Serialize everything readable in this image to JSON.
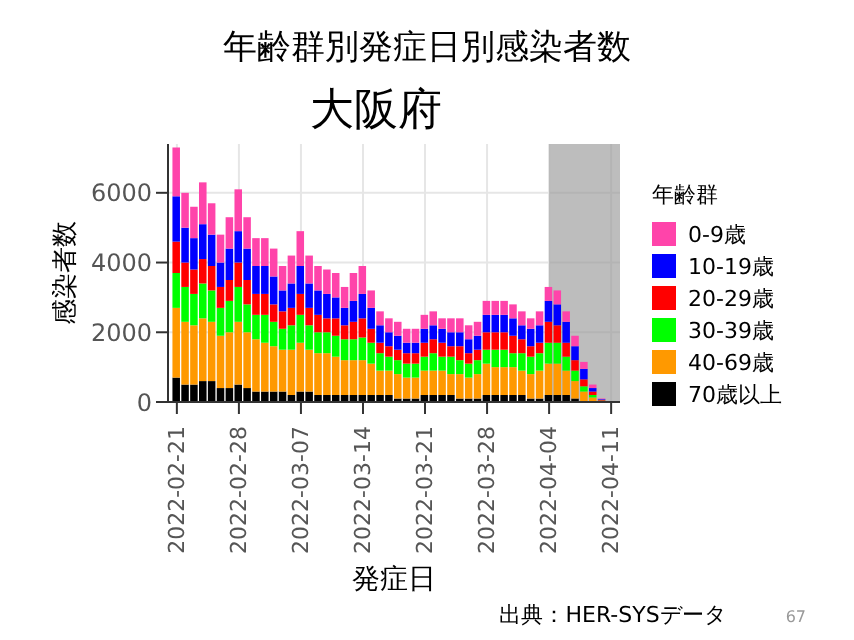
{
  "chart_data": {
    "type": "bar",
    "title": "年齢群別発症日別感染者数",
    "subtitle": "大阪府",
    "xlabel": "発症日",
    "ylabel": "感染者数",
    "legend_title": "年齢群",
    "stacked": true,
    "grid": true,
    "legend": "right",
    "x": [
      "2022-02-21",
      "2022-02-22",
      "2022-02-23",
      "2022-02-24",
      "2022-02-25",
      "2022-02-26",
      "2022-02-27",
      "2022-02-28",
      "2022-03-01",
      "2022-03-02",
      "2022-03-03",
      "2022-03-04",
      "2022-03-05",
      "2022-03-06",
      "2022-03-07",
      "2022-03-08",
      "2022-03-09",
      "2022-03-10",
      "2022-03-11",
      "2022-03-12",
      "2022-03-13",
      "2022-03-14",
      "2022-03-15",
      "2022-03-16",
      "2022-03-17",
      "2022-03-18",
      "2022-03-19",
      "2022-03-20",
      "2022-03-21",
      "2022-03-22",
      "2022-03-23",
      "2022-03-24",
      "2022-03-25",
      "2022-03-26",
      "2022-03-27",
      "2022-03-28",
      "2022-03-29",
      "2022-03-30",
      "2022-03-31",
      "2022-04-01",
      "2022-04-02",
      "2022-04-03",
      "2022-04-04",
      "2022-04-05",
      "2022-04-06",
      "2022-04-07",
      "2022-04-08",
      "2022-04-09",
      "2022-04-10"
    ],
    "xlim": [
      "2022-02-20",
      "2022-04-12"
    ],
    "xticks": [
      "2022-02-21",
      "2022-02-28",
      "2022-03-07",
      "2022-03-14",
      "2022-03-21",
      "2022-03-28",
      "2022-04-04",
      "2022-04-11"
    ],
    "ylim": [
      0,
      7400
    ],
    "yticks": [
      0,
      2000,
      4000,
      6000
    ],
    "bands": [
      {
        "axis": "x",
        "from": "2022-04-04",
        "to": "2022-04-12",
        "color": "#999999"
      }
    ],
    "series": [
      {
        "name": "70歳以上",
        "color": "#000000",
        "values": [
          700,
          500,
          500,
          600,
          600,
          400,
          400,
          500,
          400,
          300,
          300,
          300,
          300,
          200,
          300,
          300,
          200,
          200,
          200,
          200,
          200,
          200,
          200,
          200,
          200,
          100,
          100,
          100,
          200,
          200,
          200,
          200,
          100,
          100,
          100,
          200,
          200,
          200,
          200,
          200,
          100,
          100,
          200,
          200,
          200,
          100,
          null,
          20,
          10
        ]
      },
      {
        "name": "40-69歳",
        "color": "#ff9900",
        "values": [
          2000,
          1800,
          1700,
          1800,
          1700,
          1500,
          1600,
          1800,
          1600,
          1500,
          1400,
          1300,
          1200,
          1300,
          1400,
          1200,
          1200,
          1200,
          1100,
          1000,
          1000,
          1000,
          900,
          700,
          700,
          700,
          600,
          600,
          700,
          700,
          700,
          600,
          700,
          600,
          700,
          900,
          800,
          800,
          800,
          700,
          700,
          800,
          900,
          900,
          700,
          500,
          300,
          110,
          20
        ]
      },
      {
        "name": "30-39歳",
        "color": "#00ff00",
        "values": [
          1000,
          1000,
          900,
          1000,
          900,
          800,
          900,
          1000,
          800,
          700,
          800,
          700,
          600,
          700,
          800,
          700,
          600,
          600,
          600,
          600,
          600,
          650,
          600,
          500,
          400,
          400,
          400,
          400,
          400,
          500,
          400,
          500,
          400,
          400,
          400,
          400,
          500,
          500,
          400,
          500,
          500,
          500,
          600,
          600,
          400,
          300,
          150,
          70,
          10
        ]
      },
      {
        "name": "20-29歳",
        "color": "#ff0000",
        "values": [
          900,
          700,
          700,
          700,
          700,
          600,
          600,
          700,
          700,
          600,
          600,
          500,
          500,
          500,
          600,
          500,
          500,
          400,
          500,
          400,
          500,
          550,
          400,
          300,
          300,
          300,
          300,
          300,
          400,
          400,
          400,
          300,
          400,
          300,
          300,
          500,
          500,
          500,
          500,
          400,
          300,
          300,
          600,
          500,
          400,
          300,
          200,
          100,
          20
        ]
      },
      {
        "name": "10-19歳",
        "color": "#0000ff",
        "values": [
          1300,
          1000,
          900,
          1000,
          900,
          700,
          900,
          900,
          900,
          800,
          800,
          800,
          600,
          700,
          800,
          700,
          700,
          700,
          600,
          500,
          600,
          700,
          600,
          500,
          400,
          400,
          300,
          300,
          400,
          400,
          400,
          400,
          400,
          400,
          400,
          500,
          500,
          500,
          500,
          400,
          500,
          500,
          600,
          600,
          600,
          400,
          300,
          100,
          20
        ]
      },
      {
        "name": "0-9歳",
        "color": "#ff44aa",
        "values": [
          1400,
          1000,
          900,
          1200,
          900,
          800,
          900,
          1200,
          900,
          800,
          800,
          800,
          700,
          800,
          1000,
          800,
          700,
          700,
          700,
          600,
          800,
          800,
          500,
          400,
          400,
          400,
          400,
          400,
          400,
          400,
          300,
          400,
          400,
          400,
          400,
          400,
          400,
          400,
          400,
          400,
          300,
          400,
          400,
          400,
          300,
          300,
          200,
          100,
          20
        ]
      }
    ],
    "annotations": [
      "出典：HER-SYSデータ",
      "67"
    ]
  }
}
